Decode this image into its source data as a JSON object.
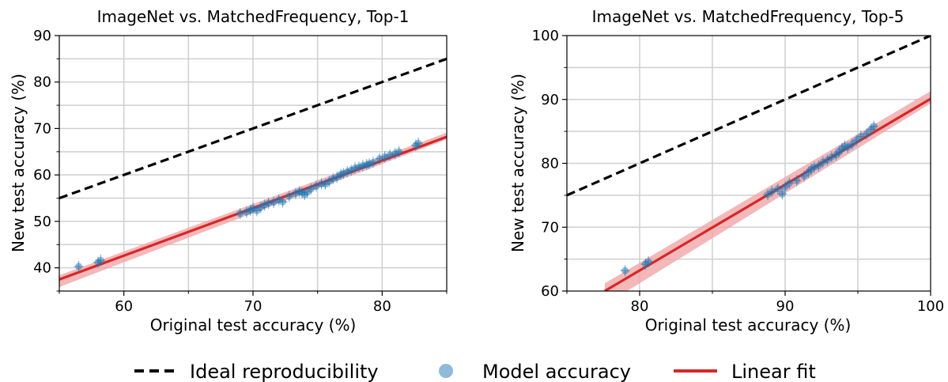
{
  "legend": {
    "ideal_label": "Ideal reproducibility",
    "model_label": "Model accuracy",
    "fit_label": "Linear fit"
  },
  "colors": {
    "ideal": "#000000",
    "fit": "#d62728",
    "fit_band": "#f0a6a8",
    "points": "#1f77b4",
    "grid": "#cfcfcf"
  },
  "chart_data": [
    {
      "type": "scatter",
      "title": "ImageNet vs. MatchedFrequency, Top-1",
      "xlabel": "Original test accuracy (%)",
      "ylabel": "New test accuracy (%)",
      "xlim": [
        55,
        85
      ],
      "ylim": [
        35,
        90
      ],
      "xticks": [
        60,
        70,
        80
      ],
      "yticks": [
        40,
        50,
        60,
        70,
        80,
        90
      ],
      "grid": true,
      "ideal_line": {
        "x": [
          55,
          85
        ],
        "y": [
          55,
          85
        ]
      },
      "linear_fit": {
        "x": [
          55,
          85
        ],
        "y": [
          37.5,
          68.2
        ]
      },
      "series": [
        {
          "name": "Model accuracy",
          "x": [
            56.5,
            58.0,
            58.2,
            69.0,
            69.5,
            69.8,
            70.0,
            70.3,
            70.6,
            70.9,
            71.2,
            71.6,
            72.0,
            72.3,
            72.8,
            73.3,
            73.6,
            73.8,
            74.0,
            74.2,
            74.5,
            74.9,
            75.3,
            75.6,
            75.9,
            76.2,
            76.5,
            76.8,
            77.0,
            77.3,
            77.6,
            77.9,
            78.2,
            78.5,
            78.8,
            79.0,
            79.3,
            79.8,
            80.2,
            80.6,
            81.0,
            81.3,
            82.6,
            82.8
          ],
          "y": [
            40.3,
            41.2,
            41.6,
            51.7,
            52.0,
            52.4,
            52.8,
            52.3,
            53.0,
            53.5,
            53.9,
            54.1,
            54.6,
            54.2,
            55.4,
            56.0,
            56.4,
            56.2,
            55.8,
            56.3,
            57.0,
            57.6,
            58.1,
            58.0,
            58.6,
            59.2,
            59.5,
            60.1,
            60.3,
            60.7,
            61.0,
            61.5,
            61.7,
            62.0,
            62.2,
            62.4,
            62.7,
            63.5,
            63.9,
            64.3,
            64.6,
            65.0,
            66.4,
            66.8
          ]
        }
      ]
    },
    {
      "type": "scatter",
      "title": "ImageNet vs. MatchedFrequency, Top-5",
      "xlabel": "Original test accuracy (%)",
      "ylabel": "New test accuracy (%)",
      "xlim": [
        75,
        100
      ],
      "ylim": [
        60,
        100
      ],
      "xticks": [
        80,
        90,
        100
      ],
      "yticks": [
        60,
        70,
        80,
        90,
        100
      ],
      "grid": true,
      "ideal_line": {
        "x": [
          75,
          100
        ],
        "y": [
          75,
          100
        ]
      },
      "linear_fit": {
        "x": [
          77.6,
          100
        ],
        "y": [
          60,
          90.1
        ]
      },
      "series": [
        {
          "name": "Model accuracy",
          "x": [
            79.0,
            80.4,
            80.6,
            88.8,
            89.1,
            89.5,
            89.8,
            90.0,
            90.3,
            90.8,
            91.3,
            91.6,
            91.8,
            92.0,
            92.3,
            92.6,
            92.9,
            93.2,
            93.5,
            93.7,
            93.9,
            94.1,
            94.3,
            94.6,
            94.9,
            95.2,
            95.6,
            95.9,
            96.1
          ],
          "y": [
            63.2,
            64.2,
            64.6,
            75.1,
            75.6,
            76.0,
            75.2,
            76.3,
            76.9,
            77.3,
            78.0,
            78.6,
            79.1,
            79.4,
            79.6,
            80.2,
            80.5,
            81.0,
            81.3,
            81.8,
            82.3,
            82.7,
            82.5,
            83.0,
            83.6,
            84.2,
            84.6,
            85.3,
            85.8
          ]
        }
      ]
    }
  ]
}
